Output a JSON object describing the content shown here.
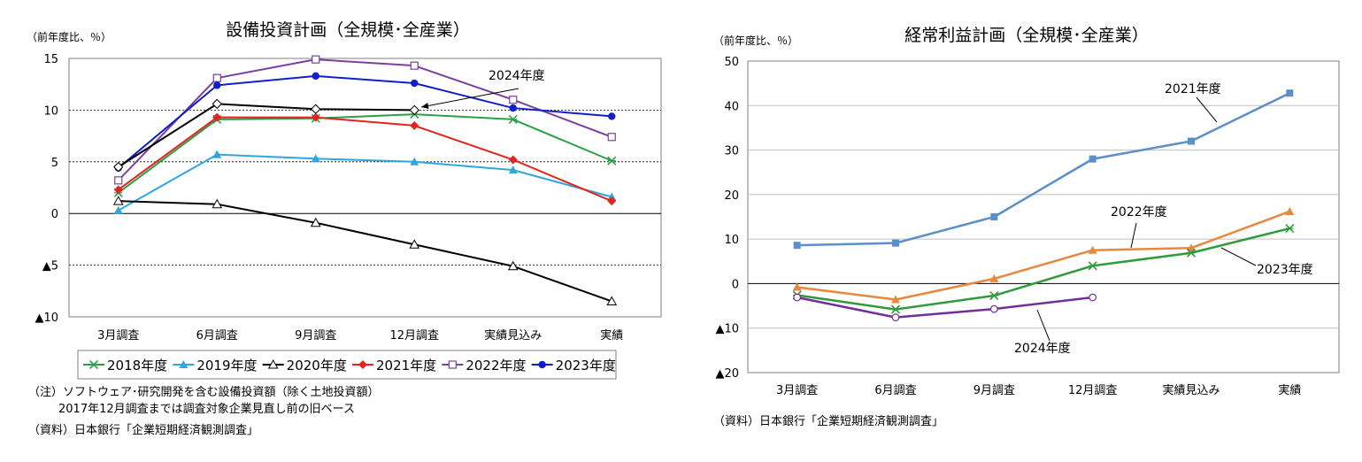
{
  "chart_data": [
    {
      "type": "line",
      "title": "設備投資計画（全規模･全産業）",
      "ylabel": "（前年度比、％）",
      "ylim": [
        -10,
        15
      ],
      "yticks": [
        15,
        10,
        5,
        0,
        -5,
        -10
      ],
      "ytick_labels": [
        "15",
        "10",
        "5",
        "0",
        "▲5",
        "▲10"
      ],
      "categories": [
        "3月調査",
        "6月調査",
        "9月調査",
        "12月調査",
        "実績見込み",
        "実績"
      ],
      "grid": "horizontal dashed",
      "legend_position": "bottom",
      "series": [
        {
          "name": "2018年度",
          "marker": "x",
          "color": "#2e9e48",
          "values": [
            2.0,
            9.1,
            9.2,
            9.6,
            9.1,
            5.1
          ]
        },
        {
          "name": "2019年度",
          "marker": "triangle",
          "color": "#2ca8dd",
          "values": [
            0.3,
            5.7,
            5.3,
            5.0,
            4.2,
            1.6
          ]
        },
        {
          "name": "2020年度",
          "marker": "triangle-open",
          "color": "#000000",
          "values": [
            1.2,
            0.9,
            -0.9,
            -3.0,
            -5.1,
            -8.5
          ]
        },
        {
          "name": "2021年度",
          "marker": "diamond",
          "color": "#e3241e",
          "values": [
            2.3,
            9.3,
            9.3,
            8.5,
            5.2,
            1.2
          ]
        },
        {
          "name": "2022年度",
          "marker": "square-open",
          "color": "#7b3f9e",
          "values": [
            3.2,
            13.1,
            14.9,
            14.3,
            11.0,
            7.4
          ]
        },
        {
          "name": "2023年度",
          "marker": "circle",
          "color": "#1020c8",
          "values": [
            4.4,
            12.4,
            13.3,
            12.6,
            10.2,
            9.4
          ]
        },
        {
          "name": "2024年度",
          "marker": "diamond-open",
          "color": "#000000",
          "values": [
            4.5,
            10.6,
            10.1,
            10.0,
            null,
            null
          ]
        }
      ],
      "annotations": [
        "2024年度"
      ],
      "notes": [
        "（注）ソフトウェア･研究開発を含む設備投資額（除く土地投資額）",
        "2017年12月調査までは調査対象企業見直し前の旧ベース",
        "（資料）日本銀行「企業短期経済観測調査」"
      ]
    },
    {
      "type": "line",
      "title": "経常利益計画（全規模･全産業）",
      "ylabel": "（前年度比、％）",
      "ylim": [
        -20,
        50
      ],
      "yticks": [
        50,
        40,
        30,
        20,
        10,
        0,
        -10,
        -20
      ],
      "ytick_labels": [
        "50",
        "40",
        "30",
        "20",
        "10",
        "0",
        "▲10",
        "▲20"
      ],
      "categories": [
        "3月調査",
        "6月調査",
        "9月調査",
        "12月調査",
        "実績見込み",
        "実績"
      ],
      "grid": "horizontal solid",
      "legend_position": "inline labels",
      "series": [
        {
          "name": "2021年度",
          "marker": "square",
          "color": "#5b8fc7",
          "values": [
            8.6,
            9.1,
            15.0,
            28.0,
            32.0,
            42.8
          ]
        },
        {
          "name": "2022年度",
          "marker": "triangle",
          "color": "#e8883d",
          "values": [
            -0.8,
            -3.6,
            1.1,
            7.5,
            8.0,
            16.2
          ]
        },
        {
          "name": "2023年度",
          "marker": "x",
          "color": "#2f9b3c",
          "values": [
            -2.6,
            -5.8,
            -2.7,
            4.0,
            6.9,
            12.4
          ]
        },
        {
          "name": "2024年度",
          "marker": "circle-open",
          "color": "#70309a",
          "values": [
            -3.1,
            -7.6,
            -5.7,
            -3.1,
            null,
            null
          ]
        }
      ],
      "annotations": [
        "2021年度",
        "2022年度",
        "2023年度",
        "2024年度"
      ],
      "notes": [
        "（資料）日本銀行「企業短期経済観測調査」"
      ]
    }
  ]
}
